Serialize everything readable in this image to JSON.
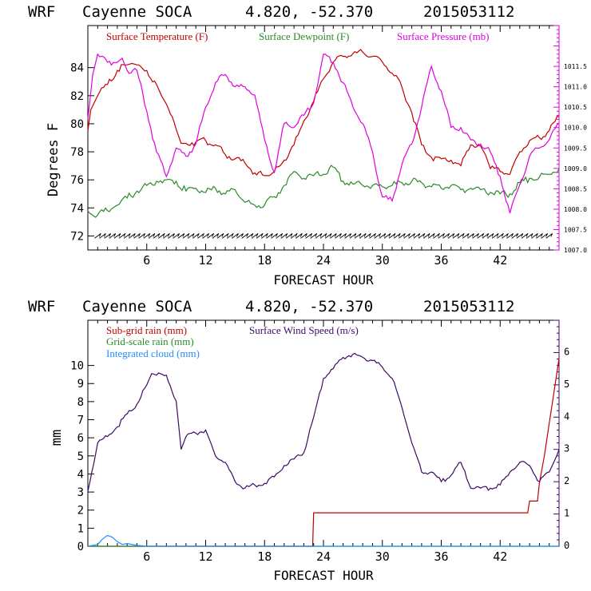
{
  "charts": [
    {
      "type": "line",
      "header": {
        "model": "WRF",
        "station": "Cayenne SOCA",
        "lat": "4.820",
        "lon": "-52.370",
        "run": "2015053112"
      },
      "xlabel": "FORECAST HOUR",
      "ylabel": "Degrees F",
      "xlim": [
        0,
        48
      ],
      "ylim": [
        71,
        87
      ],
      "xticks": [
        "6",
        "12",
        "18",
        "24",
        "30",
        "36",
        "42"
      ],
      "yticks": [
        "72",
        "74",
        "76",
        "78",
        "80",
        "82",
        "84"
      ],
      "right_ylim": [
        1007,
        1012.5
      ],
      "right_yticks": [
        "1007.0",
        "1007.5",
        "1008.0",
        "1008.5",
        "1009.0",
        "1009.5",
        "1010.0",
        "1010.5",
        "1011.0",
        "1011.5"
      ],
      "series": [
        {
          "name": "Surface Temperature (F)",
          "axis": "left",
          "color": "#c00000",
          "x": [
            0,
            0.3,
            1,
            2,
            3,
            4,
            4.5,
            5,
            6,
            7,
            7.5,
            8,
            9,
            9.5,
            10,
            11,
            12,
            13,
            14,
            15,
            16,
            17,
            18,
            18.5,
            19,
            20,
            21,
            22,
            23,
            24,
            25,
            26,
            27,
            28,
            29,
            30,
            31,
            32,
            33,
            34,
            35,
            36,
            37,
            38,
            39,
            40,
            40.5,
            41,
            42,
            43,
            44,
            45,
            46,
            47,
            48
          ],
          "values": [
            79.5,
            81,
            82,
            82.8,
            83.8,
            84.2,
            84.3,
            84.2,
            83.8,
            82.8,
            82,
            81.4,
            79.6,
            78.6,
            78.6,
            78.7,
            78.8,
            78.5,
            77.8,
            77.5,
            77.2,
            76.5,
            76.3,
            76.3,
            76.6,
            77.4,
            78.5,
            80.2,
            81.6,
            83.2,
            84.4,
            84.8,
            85,
            85.1,
            84.8,
            84.4,
            83.6,
            82.6,
            80.8,
            78.5,
            77.6,
            77.5,
            77.4,
            77,
            78.5,
            78.4,
            77.8,
            76.8,
            76.6,
            76.4,
            78,
            78.8,
            79,
            79.5,
            80.5
          ]
        },
        {
          "name": "Surface Dewpoint (F)",
          "axis": "left",
          "color": "#2a8a2a",
          "x": [
            0,
            1,
            2,
            3,
            4,
            5,
            6,
            7,
            8,
            9,
            10,
            11,
            12,
            13,
            14,
            15,
            16,
            17,
            18,
            19,
            20,
            21,
            22,
            23,
            24,
            25,
            26,
            27,
            28,
            29,
            30,
            31,
            32,
            33,
            34,
            35,
            36,
            37,
            38,
            39,
            40,
            41,
            42,
            43,
            44,
            45,
            46,
            47,
            48
          ],
          "values": [
            73.8,
            73.5,
            73.8,
            74.2,
            74.7,
            75.2,
            75.6,
            75.9,
            76,
            75.9,
            75.2,
            75.4,
            75.1,
            75.4,
            75,
            75.3,
            74.4,
            74.2,
            74.2,
            74.8,
            75.6,
            76.6,
            76.1,
            76.3,
            76.4,
            76.9,
            75.9,
            75.7,
            75.6,
            75.6,
            75.5,
            75.6,
            75.8,
            75.9,
            75.8,
            75.5,
            75.4,
            75.6,
            75.3,
            75.4,
            75.3,
            75.1,
            75,
            75,
            75.8,
            76.1,
            76.2,
            76.4,
            76.8
          ]
        },
        {
          "name": "Surface Pressure (mb)",
          "axis": "right",
          "color": "#e000e0",
          "x": [
            0,
            0.5,
            1,
            2,
            3,
            3.5,
            4,
            5,
            6,
            7,
            8,
            9,
            10,
            11,
            12,
            13,
            14,
            15,
            16,
            17,
            18,
            19,
            20,
            21,
            22,
            23,
            24,
            25,
            26,
            27,
            28,
            29,
            30,
            31,
            32,
            33,
            34,
            35,
            36,
            37,
            38,
            39,
            40,
            41,
            42,
            43,
            44,
            45,
            46,
            47,
            48
          ],
          "values": [
            1010.2,
            1011.3,
            1011.8,
            1011.6,
            1011.6,
            1011.7,
            1011.4,
            1011.4,
            1010.4,
            1009.4,
            1008.8,
            1009.5,
            1009.3,
            1009.6,
            1010.5,
            1011.1,
            1011.3,
            1011.0,
            1011.0,
            1010.8,
            1009.7,
            1008.9,
            1010.1,
            1010,
            1010.3,
            1010.6,
            1011.8,
            1011.6,
            1011.1,
            1010.5,
            1010.1,
            1009.4,
            1008.3,
            1008.2,
            1009.1,
            1009.6,
            1010.5,
            1011.5,
            1010.9,
            1010.0,
            1010.0,
            1009.7,
            1009.6,
            1009.4,
            1008.8,
            1007.9,
            1008.6,
            1009.3,
            1009.5,
            1009.7,
            1010.1
          ]
        }
      ],
      "wind_barbs": "Wind barbs along y=72"
    },
    {
      "type": "line",
      "header": {
        "model": "WRF",
        "station": "Cayenne SOCA",
        "lat": "4.820",
        "lon": "-52.370",
        "run": "2015053112"
      },
      "xlabel": "FORECAST HOUR",
      "ylabel": "mm",
      "xlim": [
        0,
        48
      ],
      "ylim": [
        0,
        12.5
      ],
      "xticks": [
        "6",
        "12",
        "18",
        "24",
        "30",
        "36",
        "42"
      ],
      "yticks": [
        "0",
        "1",
        "2",
        "3",
        "4",
        "5",
        "6",
        "7",
        "8",
        "9",
        "10"
      ],
      "right_ylim": [
        0,
        7
      ],
      "right_yticks": [
        "0",
        "1",
        "2",
        "3",
        "4",
        "5",
        "6"
      ],
      "series": [
        {
          "name": "Sub-grid rain (mm)",
          "axis": "left",
          "color": "#c00000",
          "x": [
            0,
            22.9,
            23,
            44.8,
            45,
            45.8,
            46,
            46.5,
            47,
            47.5,
            48
          ],
          "values": [
            0,
            0,
            1.85,
            1.85,
            2.5,
            2.5,
            3.5,
            5,
            6.8,
            8.6,
            10.4
          ]
        },
        {
          "name": "Grid-scale rain (mm)",
          "axis": "left",
          "color": "#2a8a2a",
          "x": [
            0,
            48
          ],
          "values": [
            0,
            0
          ]
        },
        {
          "name": "Integrated cloud (mm)",
          "axis": "left",
          "color": "#1e8fff",
          "x": [
            0,
            1,
            1.5,
            2,
            2.5,
            3,
            3.5,
            4,
            5,
            6,
            48
          ],
          "values": [
            0,
            0.1,
            0.4,
            0.6,
            0.5,
            0.25,
            0.1,
            0.15,
            0.05,
            0,
            0
          ]
        },
        {
          "name": "Surface Wind Speed (m/s)",
          "axis": "right",
          "color": "#3c0a64",
          "x": [
            0,
            1,
            2,
            3,
            4,
            5,
            6,
            6.5,
            7,
            8,
            9,
            9.5,
            10,
            11,
            12,
            13,
            14,
            15,
            16,
            17,
            18,
            19,
            20,
            21,
            22,
            23,
            24,
            25,
            26,
            27,
            28,
            29,
            30,
            31,
            32,
            33,
            34,
            35,
            36,
            37,
            38,
            39,
            40,
            41,
            42,
            43,
            44,
            45,
            46,
            47,
            48
          ],
          "values": [
            1.7,
            3.2,
            3.4,
            3.7,
            4.1,
            4.4,
            5.0,
            5.35,
            5.3,
            5.3,
            4.5,
            3.0,
            3.4,
            3.5,
            3.6,
            2.8,
            2.6,
            2.0,
            1.8,
            1.9,
            1.95,
            2.15,
            2.5,
            2.7,
            2.9,
            4.0,
            5.2,
            5.5,
            5.85,
            5.95,
            5.85,
            5.75,
            5.55,
            5.2,
            4.3,
            3.2,
            2.3,
            2.3,
            2.0,
            2.2,
            2.6,
            1.8,
            1.8,
            1.8,
            1.9,
            2.3,
            2.6,
            2.5,
            2.0,
            2.3,
            3.0
          ]
        }
      ]
    }
  ]
}
